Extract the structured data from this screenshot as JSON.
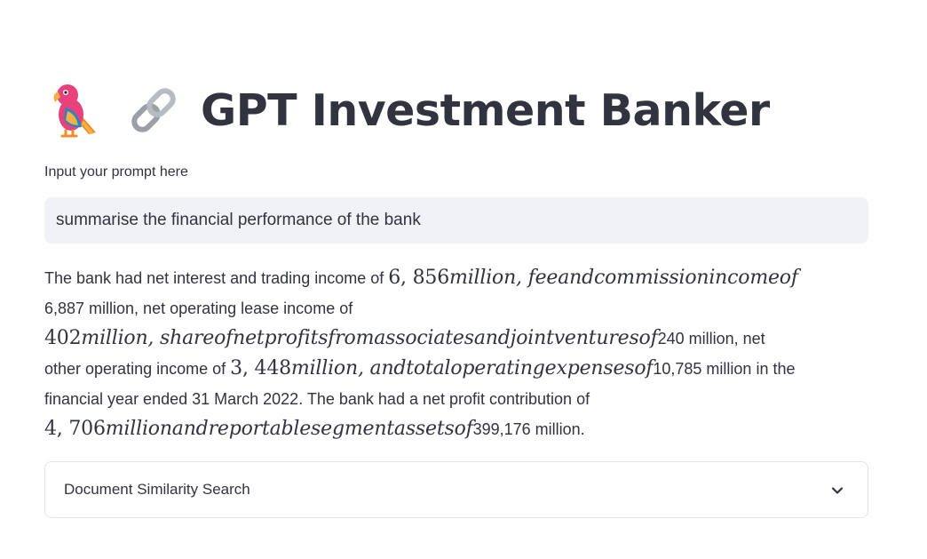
{
  "header": {
    "title": "GPT Investment Banker",
    "icons": [
      "parrot-icon",
      "link-icon"
    ]
  },
  "prompt": {
    "label": "Input your prompt here",
    "value": "summarise the financial performance of the bank"
  },
  "answer": {
    "line1_text": "The bank had net interest and trading income of ",
    "line1_math_num": "6, 856",
    "line1_math_text": "million, feeandcommissionincomeof",
    "line2_text": "6,887 million, net operating lease income of",
    "line3_math_num": "402",
    "line3_math_text": "million, shareofnetprofitsfromassociatesandjointventuresof",
    "line3_text": "240 million, net",
    "line4_text": "other operating income of ",
    "line4_math_num": "3, 448",
    "line4_math_text": "million, andtotaloperatingexpensesof",
    "line4_text2": "10,785 million in the",
    "line5_text": "financial year ended 31 March 2022. The bank had a net profit contribution of",
    "line6_math_num": "4, 706",
    "line6_math_text": "millionandreportablesegmentassetsof",
    "line6_text": "399,176 million."
  },
  "expander": {
    "label": "Document Similarity Search",
    "icon": "chevron-down-icon"
  }
}
